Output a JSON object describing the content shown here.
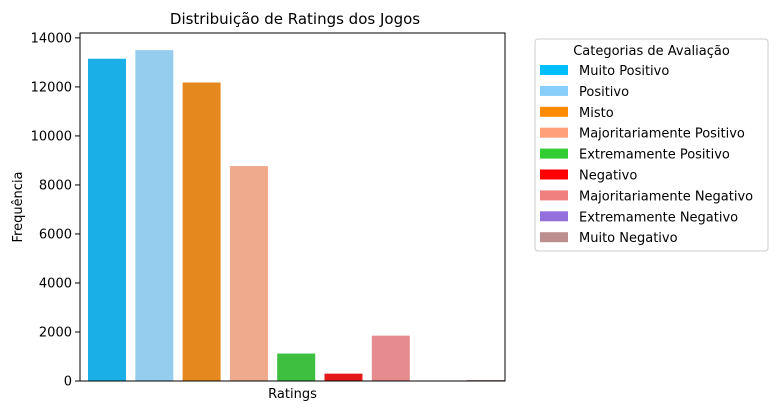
{
  "chart_data": {
    "type": "bar",
    "title": "Distribuição de Ratings dos Jogos",
    "xlabel": "Ratings",
    "ylabel": "Frequência",
    "ylim": [
      0,
      14200
    ],
    "yticks": [
      0,
      2000,
      4000,
      6000,
      8000,
      10000,
      12000,
      14000
    ],
    "grid": false,
    "categories": [
      "Muito Positivo",
      "Positivo",
      "Misto",
      "Majoritariamente Positivo",
      "Extremamente Positivo",
      "Negativo",
      "Majoritariamente Negativo",
      "Extremamente Negativo",
      "Muito Negativo"
    ],
    "values": [
      13150,
      13500,
      12180,
      8770,
      1120,
      300,
      1850,
      0,
      40
    ],
    "colors": [
      "#1AAFE6",
      "#94CDEE",
      "#E5891F",
      "#EFA98C",
      "#3FBF3F",
      "#E41A1A",
      "#E68C8F",
      "#9370DB",
      "#C09090"
    ],
    "legend": {
      "title": "Categorias de Avaliação",
      "placement": "outside-right",
      "entries": [
        {
          "label": "Muito Positivo",
          "color": "#00BFFF"
        },
        {
          "label": "Positivo",
          "color": "#87CEFA"
        },
        {
          "label": "Misto",
          "color": "#FF8C00"
        },
        {
          "label": "Majoritariamente Positivo",
          "color": "#FFA07A"
        },
        {
          "label": "Extremamente Positivo",
          "color": "#32CD32"
        },
        {
          "label": "Negativo",
          "color": "#FF0000"
        },
        {
          "label": "Majoritariamente Negativo",
          "color": "#F08080"
        },
        {
          "label": "Extremamente Negativo",
          "color": "#9370DB"
        },
        {
          "label": "Muito Negativo",
          "color": "#BC8F8F"
        }
      ]
    }
  }
}
